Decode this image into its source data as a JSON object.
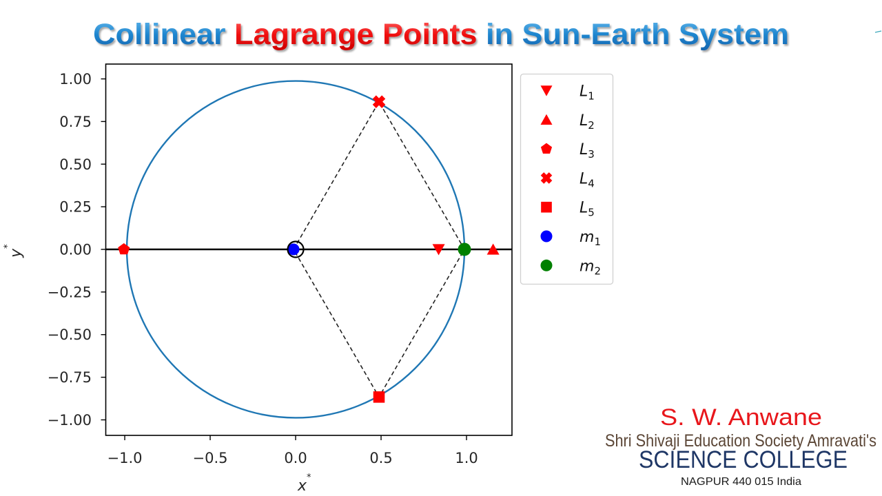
{
  "slide": {
    "title": {
      "part1": "Collinear ",
      "part2": "Lagrange Points",
      "part3": " in Sun-Earth System"
    },
    "footer": {
      "author": "S. W. Anwane",
      "society": "Shri Shivaji Education Society Amravati's",
      "college": "SCIENCE COLLEGE",
      "address": "NAGPUR 440 015 India"
    },
    "colors": {
      "title_blue": "#1f86cf",
      "title_red": "#f01010",
      "author_red": "#e8161b",
      "society_brown": "#5b4636",
      "college_navy": "#1f3766",
      "address_black": "#1a1a1a"
    }
  },
  "chart_data": {
    "type": "scatter",
    "title": "Collinear Lagrange Points in Sun-Earth System",
    "xlabel": "x*",
    "ylabel": "y*",
    "xlim": [
      -1.111,
      1.266
    ],
    "ylim": [
      -1.091,
      1.087
    ],
    "xticks": [
      -1.0,
      -0.5,
      0.0,
      0.5,
      1.0
    ],
    "xtick_labels": [
      "−1.0",
      "−0.5",
      "0.0",
      "0.5",
      "1.0"
    ],
    "yticks": [
      1.0,
      0.75,
      0.5,
      0.25,
      0.0,
      -0.25,
      -0.5,
      -0.75,
      -1.0
    ],
    "ytick_labels": [
      "1.00",
      "0.75",
      "0.50",
      "0.25",
      "0.00",
      "−0.25",
      "−0.50",
      "−0.75",
      "−1.00"
    ],
    "grid": false,
    "aspect": "equal",
    "legend_position": "outside upper right",
    "orbit": {
      "type": "circle",
      "center": [
        0,
        0
      ],
      "radius": 0.98785,
      "color": "#1f77b4"
    },
    "x_axis_line": {
      "y": 0,
      "color": "#000000"
    },
    "triangle_lines": {
      "style": "dashed",
      "color": "#222222",
      "points": [
        [
          -0.01215,
          0
        ],
        [
          0.48785,
          0.86603
        ],
        [
          0.98785,
          0
        ],
        [
          0.48785,
          -0.86603
        ],
        [
          -0.01215,
          0
        ]
      ]
    },
    "origin_marker": {
      "x": 0,
      "y": 0,
      "marker": "open-circle",
      "color": "#000000"
    },
    "series": [
      {
        "name": "L1",
        "label": "L",
        "sub": "1",
        "marker": "triangle-down",
        "color": "#ff0000",
        "x": 0.83692,
        "y": 0,
        "size": 9
      },
      {
        "name": "L2",
        "label": "L",
        "sub": "2",
        "marker": "triangle-up",
        "color": "#ff0000",
        "x": 1.15568,
        "y": 0,
        "size": 9
      },
      {
        "name": "L3",
        "label": "L",
        "sub": "3",
        "marker": "pentagon",
        "color": "#ff0000",
        "x": -1.00506,
        "y": 0,
        "size": 9
      },
      {
        "name": "L4",
        "label": "L",
        "sub": "4",
        "marker": "x-filled",
        "color": "#ff0000",
        "x": 0.48785,
        "y": 0.86603,
        "size": 9.5
      },
      {
        "name": "L5",
        "label": "L",
        "sub": "5",
        "marker": "square",
        "color": "#ff0000",
        "x": 0.48785,
        "y": -0.86603,
        "size": 9
      },
      {
        "name": "m1",
        "label": "m",
        "sub": "1",
        "marker": "circle",
        "color": "#0000ff",
        "x": -0.01215,
        "y": 0,
        "size": 8.5
      },
      {
        "name": "m2",
        "label": "m",
        "sub": "2",
        "marker": "circle",
        "color": "#008000",
        "x": 0.98785,
        "y": 0,
        "size": 9.5
      }
    ]
  }
}
